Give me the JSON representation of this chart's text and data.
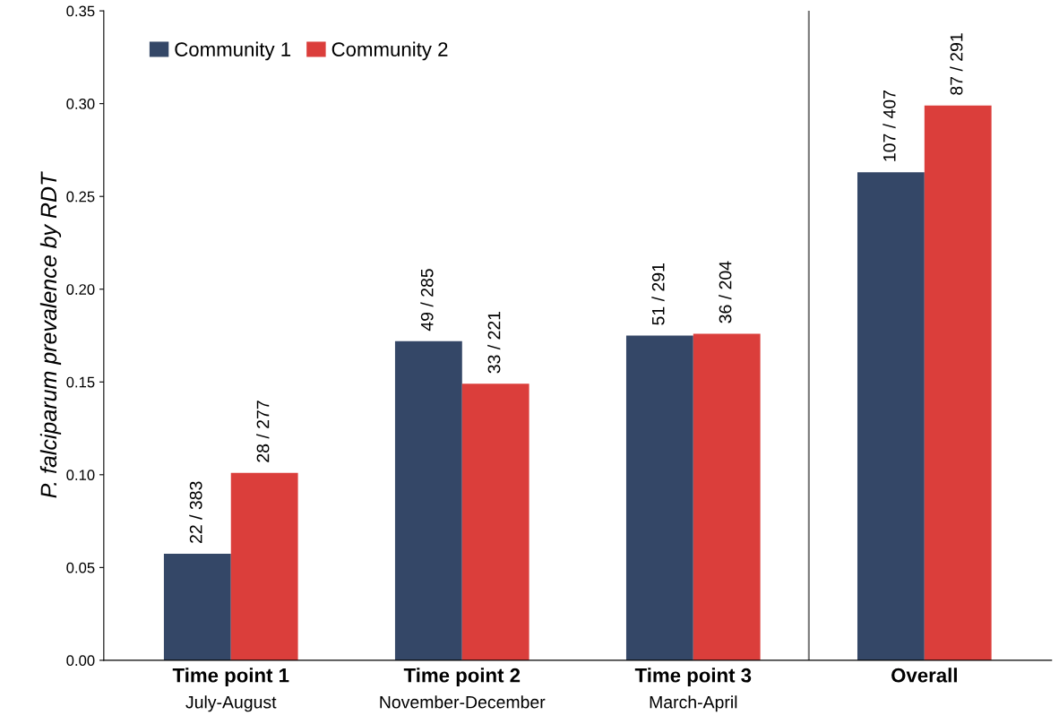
{
  "chart_data": {
    "type": "bar",
    "ylabel": "P. falciparum prevalence by RDT",
    "categories": [
      "Time point 1\nJuly-August",
      "Time point 2\nNovember-December",
      "Time point 3\nMarch-April",
      "Overall"
    ],
    "series": [
      {
        "name": "Community 1",
        "color": "#344767",
        "values": [
          0.0574,
          0.172,
          0.175,
          0.263
        ]
      },
      {
        "name": "Community 2",
        "color": "#db3e3b",
        "values": [
          0.101,
          0.149,
          0.176,
          0.299
        ]
      }
    ],
    "annotations": [
      "22 / 383",
      "49 / 285",
      "51 / 291",
      "107 / 407",
      "28 / 277",
      "33 / 221",
      "36 / 204",
      "87 / 291"
    ],
    "ylim": [
      0,
      0.35
    ],
    "yticks": [
      {
        "value": 0,
        "label": "0.00"
      },
      {
        "value": 0.05,
        "label": "0.05"
      },
      {
        "value": 0.1,
        "label": "0.10"
      },
      {
        "value": 0.15,
        "label": "0.15"
      },
      {
        "value": 0.2,
        "label": "0.20"
      },
      {
        "value": 0.25,
        "label": "0.25"
      },
      {
        "value": 0.3,
        "label": "0.30"
      },
      {
        "value": 0.35,
        "label": "0.35"
      }
    ],
    "legend": "top left",
    "grid": false
  }
}
